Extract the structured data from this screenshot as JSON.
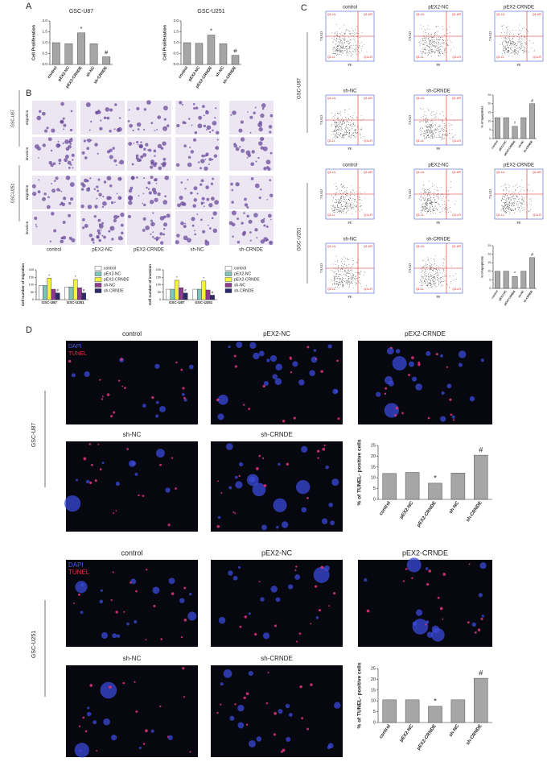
{
  "panel_labels": [
    "A",
    "B",
    "C",
    "D"
  ],
  "chart_data": [
    {
      "type": "bar",
      "title": "GSC-U87",
      "y_label": "Cell Proliferation",
      "categories": [
        "control",
        "pEX2-NC",
        "pEX2-CRNDE",
        "sh-NC",
        "sh-CRNDE"
      ],
      "values": [
        1.0,
        0.95,
        1.45,
        0.95,
        0.35
      ],
      "markers": [
        null,
        null,
        "*",
        null,
        "#"
      ],
      "color": "#a6a6a6",
      "ylim": [
        0,
        2
      ],
      "yticks": [
        {
          "value": 0,
          "label": "0.0"
        },
        {
          "value": 0.5,
          "label": "0.5"
        },
        {
          "value": 1,
          "label": "1.0"
        },
        {
          "value": 1.5,
          "label": "1.5"
        },
        {
          "value": 2,
          "label": "2.0"
        }
      ]
    },
    {
      "type": "bar",
      "title": "GSC-U251",
      "y_label": "Cell Proliferation",
      "categories": [
        "control",
        "pEX2-NC",
        "pEX2-CRNDE",
        "sh-NC",
        "sh-CRNDE"
      ],
      "values": [
        1.0,
        0.97,
        1.35,
        0.95,
        0.42
      ],
      "markers": [
        null,
        null,
        "*",
        null,
        "#"
      ],
      "color": "#a6a6a6",
      "ylim": [
        0,
        2
      ],
      "yticks": [
        {
          "value": 0,
          "label": "0.0"
        },
        {
          "value": 0.5,
          "label": "0.5"
        },
        {
          "value": 1,
          "label": "1.0"
        },
        {
          "value": 1.5,
          "label": "1.5"
        },
        {
          "value": 2,
          "label": "2.0"
        }
      ]
    },
    {
      "type": "grouped_bar",
      "y_label": "Cell number of migration",
      "categories": [
        "GSC-U87",
        "GSC-U251"
      ],
      "series": [
        {
          "name": "control",
          "color": "#ffffff",
          "values": [
            95,
            85
          ]
        },
        {
          "name": "pEX2-NC",
          "color": "#7fc4b8",
          "values": [
            95,
            85
          ]
        },
        {
          "name": "pEX2-CRNDE",
          "color": "#f2f23a",
          "values": [
            145,
            135
          ],
          "markers": [
            "*",
            "*"
          ]
        },
        {
          "name": "sh-NC",
          "color": "#8e3a8e",
          "values": [
            70,
            80
          ]
        },
        {
          "name": "sh-CRNDE",
          "color": "#2b2b6b",
          "values": [
            45,
            45
          ],
          "markers": [
            "#",
            "#"
          ]
        }
      ],
      "ylim": [
        0,
        200
      ],
      "yticks": [
        0,
        50,
        100,
        150,
        200
      ]
    },
    {
      "type": "grouped_bar",
      "y_label": "Cell number of invasion",
      "categories": [
        "GSC-U87",
        "GSC-U251"
      ],
      "series": [
        {
          "name": "control",
          "color": "#ffffff",
          "values": [
            70,
            70
          ]
        },
        {
          "name": "pEX2-NC",
          "color": "#7fc4b8",
          "values": [
            70,
            70
          ]
        },
        {
          "name": "pEX2-CRNDE",
          "color": "#f2f23a",
          "values": [
            130,
            125
          ],
          "markers": [
            "*",
            "*"
          ]
        },
        {
          "name": "sh-NC",
          "color": "#8e3a8e",
          "values": [
            80,
            65
          ]
        },
        {
          "name": "sh-CRNDE",
          "color": "#2b2b6b",
          "values": [
            45,
            30
          ],
          "markers": [
            "#",
            "#"
          ]
        }
      ],
      "ylim": [
        0,
        200
      ],
      "yticks": [
        0,
        50,
        100,
        150,
        200
      ]
    },
    {
      "type": "bar",
      "y_label": "% of apoptosis",
      "categories": [
        "control",
        "pEX2-NC",
        "pEX2-CRNDE",
        "sh-NC",
        "sh-CRNDE"
      ],
      "values": [
        12,
        12,
        7,
        12,
        20
      ],
      "markers": [
        null,
        null,
        "*",
        null,
        "#"
      ],
      "color": "#a6a6a6",
      "ylim": [
        0,
        25
      ],
      "yticks": [
        0,
        5,
        10,
        15,
        20,
        25
      ]
    },
    {
      "type": "bar",
      "y_label": "% of apoptosis",
      "categories": [
        "control",
        "pEX2-NC",
        "pEX2-CRNDE",
        "sh-NC",
        "sh-CRNDE"
      ],
      "values": [
        10,
        10,
        7,
        10,
        18
      ],
      "markers": [
        null,
        null,
        "*",
        null,
        "#"
      ],
      "color": "#a6a6a6",
      "ylim": [
        0,
        25
      ],
      "yticks": [
        0,
        5,
        10,
        15,
        20,
        25
      ]
    },
    {
      "type": "bar",
      "y_label": "% of TUNEL- positive cells",
      "categories": [
        "control",
        "pEX2-NC",
        "pEX2-CRNDE",
        "sh-NC",
        "sh-CRNDE"
      ],
      "values": [
        12,
        12.5,
        7.5,
        12.2,
        20.5
      ],
      "markers": [
        null,
        null,
        "*",
        null,
        "#"
      ],
      "color": "#a6a6a6",
      "ylim": [
        0,
        25
      ],
      "yticks": [
        0,
        5,
        10,
        15,
        20,
        25
      ]
    },
    {
      "type": "bar",
      "y_label": "% of TUNEL- positive cells",
      "categories": [
        "control",
        "pEX2-NC",
        "pEX2-CRNDE",
        "sh-NC",
        "sh-CRNDE"
      ],
      "values": [
        10.5,
        10.5,
        7.5,
        10.5,
        20.5
      ],
      "markers": [
        null,
        null,
        "*",
        null,
        "#"
      ],
      "color": "#a6a6a6",
      "ylim": [
        0,
        25
      ],
      "yticks": [
        0,
        5,
        10,
        15,
        20,
        25
      ]
    }
  ],
  "flow": {
    "titles": [
      "control",
      "pEX2-NC",
      "pEX2-CRNDE",
      "sh-NC",
      "sh-CRNDE"
    ],
    "groups": [
      "GSC-U87",
      "GSC-U251"
    ],
    "x_label": "PE",
    "y_label": "7AAD",
    "quadrants": [
      "Q1-UL",
      "Q1-UR",
      "Q1-LL",
      "Q1-LR"
    ]
  },
  "transwell": {
    "columns": [
      "control",
      "pEX2-NC",
      "pEX2-CRNDE",
      "sh-NC",
      "sh-CRNDE"
    ],
    "rows": [
      "migration",
      "invasion"
    ],
    "groups": [
      "GSC-U87",
      "GSC-U251"
    ]
  },
  "tunel": {
    "titles": [
      "control",
      "pEX2-NC",
      "pEX2-CRNDE",
      "sh-NC",
      "sh-CRNDE"
    ],
    "groups": [
      "GSC-U87",
      "GSC-U251"
    ],
    "stains": [
      "DAPI",
      "TUNEL"
    ]
  }
}
